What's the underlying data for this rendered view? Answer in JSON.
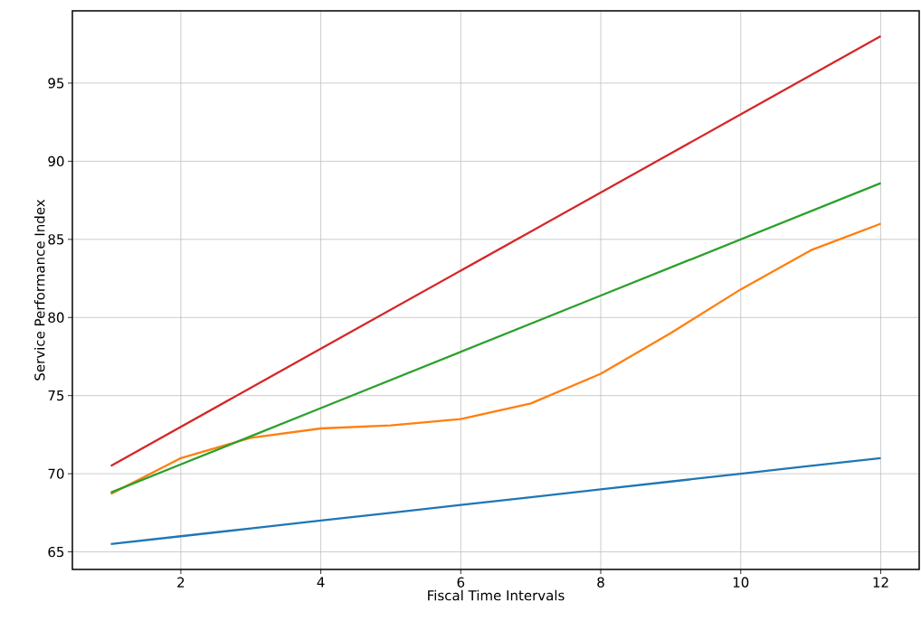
{
  "chart_data": {
    "type": "line",
    "xlabel": "Fiscal Time Intervals",
    "ylabel": "Service Performance Index",
    "x": [
      1,
      2,
      3,
      4,
      5,
      6,
      7,
      8,
      9,
      10,
      11,
      12
    ],
    "xlim": [
      0.45,
      12.55
    ],
    "ylim": [
      63.875,
      99.625
    ],
    "xticks": [
      2,
      4,
      6,
      8,
      10,
      12
    ],
    "yticks": [
      65,
      70,
      75,
      80,
      85,
      90,
      95
    ],
    "grid": true,
    "series": [
      {
        "color": "#1f77b4",
        "values": [
          65.5,
          66,
          66.5,
          67,
          67.5,
          68,
          68.5,
          69,
          69.5,
          70,
          70.5,
          71
        ]
      },
      {
        "color": "#ff7f0e",
        "values": [
          68.7,
          71.0,
          72.3,
          72.9,
          73.1,
          73.5,
          74.5,
          76.4,
          79.0,
          81.8,
          84.3,
          86.0
        ]
      },
      {
        "color": "#2ca02c",
        "values": [
          68.8,
          70.6,
          72.4,
          74.2,
          76,
          77.8,
          79.6,
          81.4,
          83.2,
          85,
          86.8,
          88.6
        ]
      },
      {
        "color": "#d62728",
        "values": [
          70.5,
          73,
          75.5,
          78,
          80.5,
          83,
          85.5,
          88,
          90.5,
          93,
          95.5,
          98
        ]
      }
    ]
  }
}
